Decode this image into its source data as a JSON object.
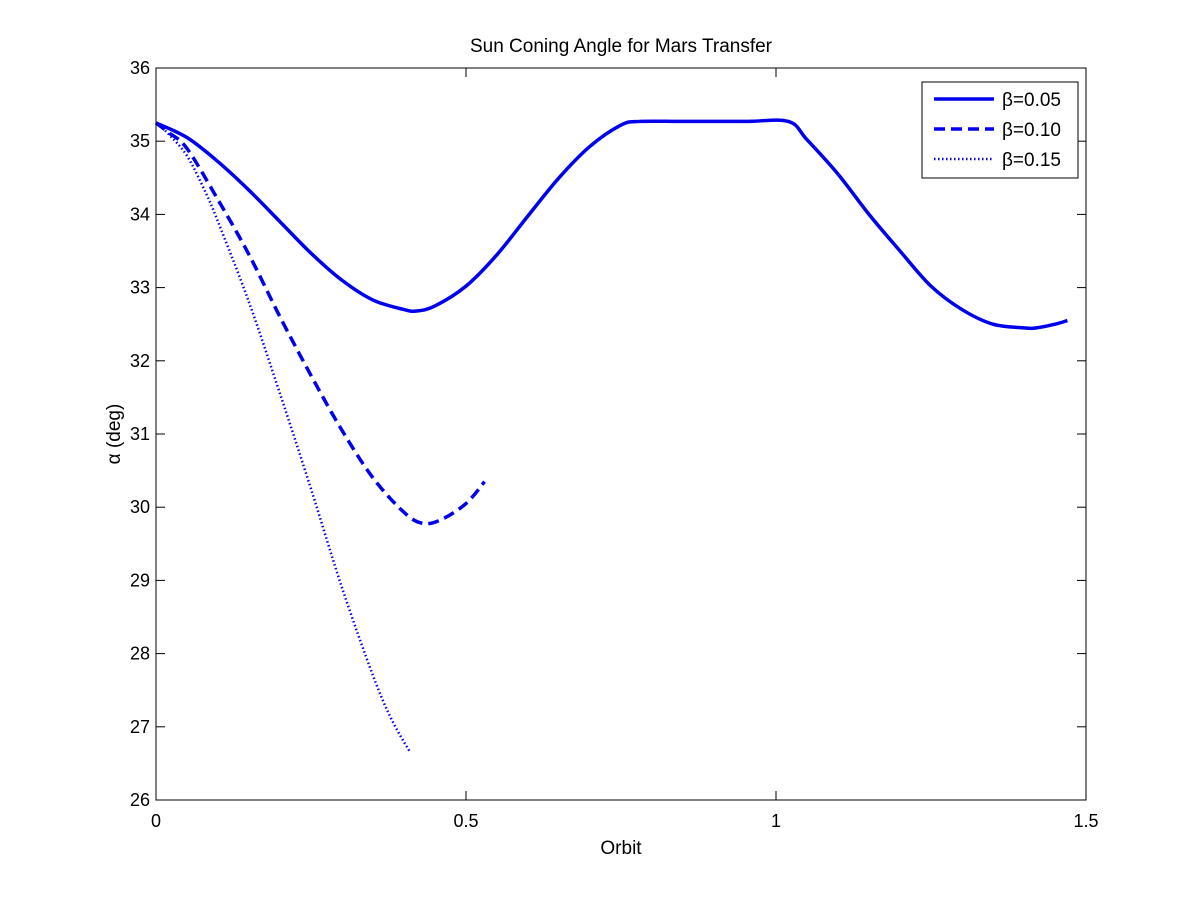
{
  "chart_data": {
    "type": "line",
    "title": "Sun Coning Angle for Mars Transfer",
    "xlabel": "Orbit",
    "ylabel": "α (deg)",
    "xlim": [
      0,
      1.5
    ],
    "ylim": [
      26,
      36
    ],
    "xticks": [
      0,
      0.5,
      1,
      1.5
    ],
    "xtick_labels": [
      "0",
      "0.5",
      "1",
      "1.5"
    ],
    "yticks": [
      26,
      27,
      28,
      29,
      30,
      31,
      32,
      33,
      34,
      35,
      36
    ],
    "ytick_labels": [
      "26",
      "27",
      "28",
      "29",
      "30",
      "31",
      "32",
      "33",
      "34",
      "35",
      "36"
    ],
    "grid": false,
    "legend_position": "top-right",
    "line_color": "#0000ee",
    "series": [
      {
        "name": "β=0.05",
        "style": "solid",
        "x": [
          0,
          0.05,
          0.1,
          0.15,
          0.2,
          0.25,
          0.3,
          0.35,
          0.4,
          0.42,
          0.45,
          0.5,
          0.55,
          0.6,
          0.65,
          0.7,
          0.75,
          0.78,
          0.85,
          0.95,
          1.02,
          1.05,
          1.1,
          1.15,
          1.2,
          1.25,
          1.3,
          1.35,
          1.4,
          1.42,
          1.45,
          1.47
        ],
        "y": [
          35.25,
          35.05,
          34.72,
          34.33,
          33.9,
          33.47,
          33.1,
          32.83,
          32.7,
          32.68,
          32.75,
          33.02,
          33.45,
          33.98,
          34.5,
          34.93,
          35.22,
          35.27,
          35.27,
          35.27,
          35.27,
          35.02,
          34.55,
          34.0,
          33.5,
          33.02,
          32.7,
          32.5,
          32.45,
          32.45,
          32.5,
          32.55
        ]
      },
      {
        "name": "β=0.10",
        "style": "dashed",
        "x": [
          0,
          0.02,
          0.05,
          0.1,
          0.15,
          0.2,
          0.25,
          0.3,
          0.35,
          0.4,
          0.43,
          0.46,
          0.5,
          0.53
        ],
        "y": [
          35.25,
          35.12,
          34.9,
          34.2,
          33.45,
          32.6,
          31.8,
          31.05,
          30.4,
          29.93,
          29.78,
          29.83,
          30.05,
          30.35
        ]
      },
      {
        "name": "β=0.15",
        "style": "dotted",
        "x": [
          0,
          0.02,
          0.05,
          0.08,
          0.1,
          0.15,
          0.2,
          0.25,
          0.3,
          0.35,
          0.38,
          0.41
        ],
        "y": [
          35.25,
          35.1,
          34.8,
          34.3,
          33.9,
          32.8,
          31.55,
          30.25,
          28.9,
          27.7,
          27.1,
          26.65
        ]
      }
    ]
  }
}
